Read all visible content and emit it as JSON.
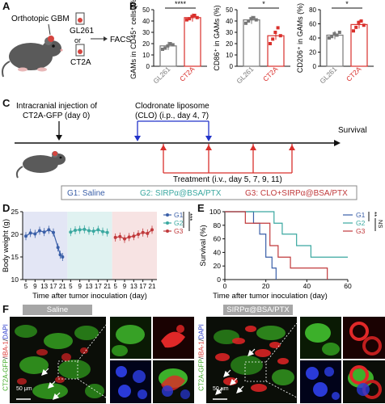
{
  "panel_A": {
    "label": "A",
    "text_orthotopic": "Orthotopic GBM",
    "text_gl261": "GL261",
    "text_or": "or",
    "text_ct2a": "CT2A",
    "text_facs": "FACS"
  },
  "panel_B": {
    "label": "B",
    "charts": [
      {
        "ylabel": "GAMs in CD45⁺ cells (%)",
        "sig": "****"
      },
      {
        "ylabel": "CD86⁺ in GAMs (%)",
        "sig": "*"
      },
      {
        "ylabel": "CD206⁺ in GAMs (%)",
        "sig": "*"
      }
    ]
  },
  "chart_data": [
    {
      "type": "bar",
      "categories": [
        "GL261",
        "CT2A"
      ],
      "values": [
        18,
        43
      ],
      "ylim": [
        0,
        50
      ],
      "yticks": [
        "0",
        "10",
        "20",
        "30",
        "40",
        "50"
      ],
      "ylabel": "GAMs in CD45⁺ cells (%)",
      "points": [
        [
          15,
          16,
          18,
          20,
          19
        ],
        [
          41,
          42,
          44,
          45,
          43
        ]
      ]
    },
    {
      "type": "bar",
      "categories": [
        "GL261",
        "CT2A"
      ],
      "values": [
        41,
        27
      ],
      "ylim": [
        0,
        50
      ],
      "yticks": [
        "0",
        "10",
        "20",
        "30",
        "40",
        "50"
      ],
      "ylabel": "CD86⁺ in GAMs (%)",
      "points": [
        [
          38,
          40,
          42,
          43,
          41
        ],
        [
          20,
          24,
          30,
          34,
          27
        ]
      ]
    },
    {
      "type": "bar",
      "categories": [
        "GL261",
        "CT2A"
      ],
      "values": [
        44,
        59
      ],
      "ylim": [
        0,
        80
      ],
      "yticks": [
        "0",
        "20",
        "40",
        "60",
        "80"
      ],
      "ylabel": "CD206⁺ in GAMs (%)",
      "points": [
        [
          40,
          42,
          46,
          44,
          48
        ],
        [
          50,
          55,
          62,
          64,
          58
        ]
      ]
    },
    {
      "type": "line",
      "xlabel": "Time after tumor inoculation (day)",
      "ylabel": "Body weight (g)",
      "ylim": [
        10,
        25
      ],
      "yticks": [
        "10",
        "15",
        "20",
        "25"
      ],
      "xticks": [
        "5",
        "9",
        "13",
        "17",
        "21"
      ],
      "legend": [
        "G1",
        "G2",
        "G3"
      ],
      "sig": [
        "***",
        "*"
      ],
      "series": [
        {
          "name": "G1",
          "x": [
            5,
            7,
            9,
            11,
            13,
            15,
            17,
            19,
            20,
            21
          ],
          "y": [
            19.6,
            20.3,
            20.1,
            20.8,
            20.5,
            21.0,
            20.4,
            17.1,
            15.5,
            15.0
          ]
        },
        {
          "name": "G2",
          "x": [
            5,
            7,
            9,
            11,
            13,
            15,
            17,
            19,
            21
          ],
          "y": [
            20.5,
            20.9,
            21.0,
            21.1,
            20.8,
            20.7,
            21.0,
            20.6,
            20.4
          ]
        },
        {
          "name": "G3",
          "x": [
            5,
            7,
            9,
            11,
            13,
            15,
            17,
            19,
            21
          ],
          "y": [
            19.3,
            19.5,
            19.0,
            19.4,
            19.6,
            20.0,
            20.4,
            20.2,
            21.0
          ]
        }
      ]
    },
    {
      "type": "line",
      "xlabel": "Time after tumor inoculation (day)",
      "ylabel": "Survival (%)",
      "ylim": [
        0,
        100
      ],
      "yticks": [
        "0",
        "20",
        "40",
        "60",
        "80",
        "100"
      ],
      "xticks": [
        "0",
        "20",
        "40",
        "60"
      ],
      "legend": [
        "G1",
        "G2",
        "G3"
      ],
      "sig": [
        "**",
        "NS"
      ],
      "series": [
        {
          "name": "G1",
          "steps": [
            [
              0,
              100
            ],
            [
              14,
              100
            ],
            [
              14,
              83
            ],
            [
              17,
              83
            ],
            [
              17,
              67
            ],
            [
              20,
              67
            ],
            [
              20,
              33
            ],
            [
              23,
              33
            ],
            [
              23,
              17
            ],
            [
              25,
              17
            ],
            [
              25,
              0
            ]
          ]
        },
        {
          "name": "G2",
          "steps": [
            [
              0,
              100
            ],
            [
              24,
              100
            ],
            [
              24,
              83
            ],
            [
              28,
              83
            ],
            [
              28,
              67
            ],
            [
              35,
              67
            ],
            [
              35,
              50
            ],
            [
              42,
              50
            ],
            [
              42,
              33
            ],
            [
              60,
              33
            ]
          ]
        },
        {
          "name": "G3",
          "steps": [
            [
              0,
              100
            ],
            [
              10,
              100
            ],
            [
              10,
              83
            ],
            [
              22,
              83
            ],
            [
              22,
              50
            ],
            [
              26,
              50
            ],
            [
              26,
              33
            ],
            [
              32,
              33
            ],
            [
              32,
              17
            ],
            [
              50,
              17
            ],
            [
              50,
              0
            ]
          ]
        }
      ]
    }
  ],
  "panel_C": {
    "label": "C",
    "injection": "Intracranial injection of",
    "injection2": "CT2A-GFP (day 0)",
    "clo": "Clodronate liposome",
    "clo2": "(CLO) (i.p., day 4, 7)",
    "survival": "Survival",
    "treatment": "Treatment (i.v., day 5, 7, 9, 11)",
    "g1": "G1: Saline",
    "g2": "G2: SIRPα@BSA/PTX",
    "g3": "G3: CLO+SIRPα@BSA/PTX"
  },
  "panel_D": {
    "label": "D"
  },
  "panel_E": {
    "label": "E"
  },
  "panel_F": {
    "label": "F",
    "saline": "Saline",
    "sirp": "SIRPα@BSA/PTX",
    "stain_gfp": "CT2A-GFP",
    "stain_iba": "IBA-1",
    "stain_dapi": "DAPI",
    "scale": "50 μm"
  },
  "colors": {
    "g1": "#3a5fa8",
    "g2": "#3aa8a0",
    "g3": "#c0393b",
    "red": "#d9302c",
    "blue": "#2233c9",
    "gray": "#9a9a9a"
  }
}
